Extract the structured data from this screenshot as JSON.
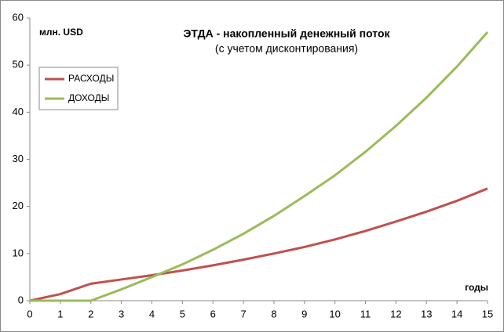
{
  "chart_data": {
    "type": "line",
    "title": "ЭТДА - накопленный денежный поток",
    "subtitle": "(с учетом дисконтирования)",
    "y_label": "млн. USD",
    "x_label": "годы",
    "x": [
      0,
      1,
      2,
      3,
      4,
      5,
      6,
      7,
      8,
      9,
      10,
      11,
      12,
      13,
      14,
      15
    ],
    "series": [
      {
        "name": "РАСХОДЫ",
        "color": "#c0504d",
        "values": [
          0,
          1.4,
          3.6,
          4.5,
          5.4,
          6.4,
          7.5,
          8.7,
          10.0,
          11.4,
          13.0,
          14.8,
          16.8,
          18.9,
          21.2,
          23.8
        ]
      },
      {
        "name": "ДОХОДЫ",
        "color": "#9bbb59",
        "values": [
          0,
          0,
          0,
          2.4,
          5.0,
          7.7,
          10.8,
          14.2,
          18.0,
          22.2,
          26.6,
          31.6,
          37.1,
          43.1,
          49.7,
          57.0
        ]
      }
    ],
    "xlim": [
      0,
      15
    ],
    "xticks": [
      0,
      1,
      2,
      3,
      4,
      5,
      6,
      7,
      8,
      9,
      10,
      11,
      12,
      13,
      14,
      15
    ],
    "ylim": [
      0,
      60
    ],
    "yticks": [
      0,
      10,
      20,
      30,
      40,
      50,
      60
    ],
    "grid": false
  }
}
